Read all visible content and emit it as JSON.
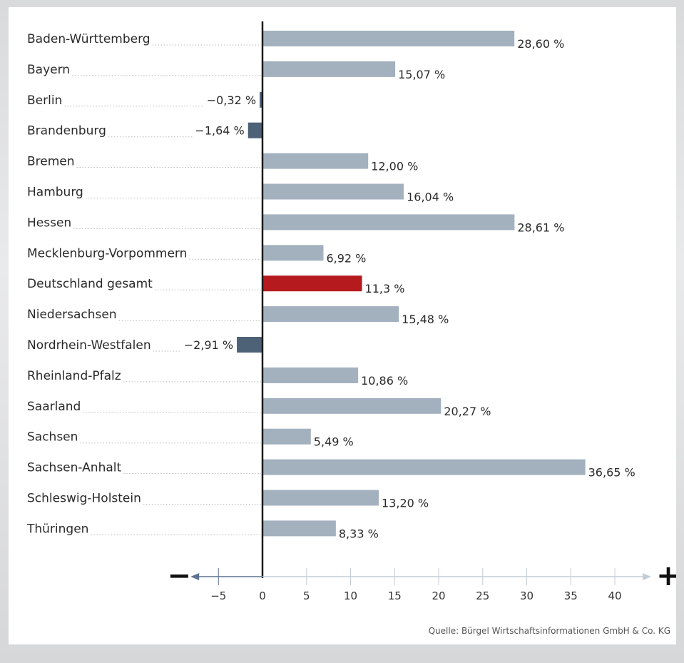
{
  "chart_data": {
    "type": "bar",
    "orientation": "horizontal",
    "categories": [
      "Baden-Württemberg",
      "Bayern",
      "Berlin",
      "Brandenburg",
      "Bremen",
      "Hamburg",
      "Hessen",
      "Mecklenburg-Vorpommern",
      "Deutschland gesamt",
      "Niedersachsen",
      "Nordrhein-Westfalen",
      "Rheinland-Pfalz",
      "Saarland",
      "Sachsen",
      "Sachsen-Anhalt",
      "Schleswig-Holstein",
      "Thüringen"
    ],
    "values": [
      28.6,
      15.07,
      -0.32,
      -1.64,
      12.0,
      16.04,
      28.61,
      6.92,
      11.3,
      15.48,
      -2.91,
      10.86,
      20.27,
      5.49,
      36.65,
      13.2,
      8.33
    ],
    "value_labels": [
      "28,60 %",
      "15,07 %",
      "−0,32 %",
      "−1,64  %",
      "12,00 %",
      "16,04 %",
      "28,61 %",
      "6,92 %",
      "11,3 %",
      "15,48 %",
      "−2,91 %",
      "10,86 %",
      "20,27 %",
      "5,49 %",
      "36,65 %",
      "13,20 %",
      "8,33 %"
    ],
    "highlight_category": "Deutschland gesamt",
    "x_ticks": [
      -5,
      0,
      5,
      10,
      15,
      20,
      25,
      30,
      35,
      40
    ],
    "x_tick_labels": [
      "−5",
      "0",
      "5",
      "10",
      "15",
      "20",
      "25",
      "30",
      "35",
      "40"
    ],
    "xlim": [
      -8,
      43
    ],
    "minus_symbol": "−",
    "plus_symbol": "+",
    "grid": false,
    "colors": {
      "positive": "#a3b1bf",
      "negative": "#4d6177",
      "highlight": "#b51a1e",
      "highlight_text": "#b51a1e",
      "axis": "#1a1a1a",
      "bottom_axis": "#c4cdd6",
      "arrow_left": "#5b7390"
    }
  },
  "source": "Quelle: Bürgel Wirtschaftsinformationen GmbH & Co. KG"
}
